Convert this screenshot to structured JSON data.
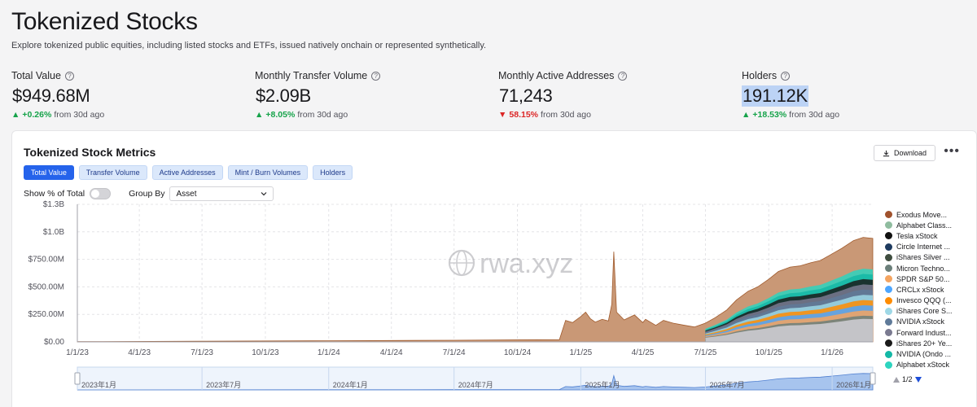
{
  "header": {
    "title": "Tokenized Stocks",
    "subtitle": "Explore tokenized public equities, including listed stocks and ETFs, issued natively onchain or represented synthetically."
  },
  "stats": [
    {
      "label": "Total Value",
      "value": "$949.68M",
      "delta": "+0.26%",
      "direction": "up",
      "suffix": "from 30d ago"
    },
    {
      "label": "Monthly Transfer Volume",
      "value": "$2.09B",
      "delta": "+8.05%",
      "direction": "up",
      "suffix": "from 30d ago"
    },
    {
      "label": "Monthly Active Addresses",
      "value": "71,243",
      "delta": "58.15%",
      "direction": "down",
      "suffix": "from 30d ago"
    },
    {
      "label": "Holders",
      "value": "191.12K",
      "delta": "+18.53%",
      "direction": "up",
      "suffix": "from 30d ago"
    }
  ],
  "card": {
    "title": "Tokenized Stock Metrics",
    "download_label": "Download",
    "more_label": "•••",
    "tabs": [
      "Total Value",
      "Transfer Volume",
      "Active Addresses",
      "Mint / Burn Volumes",
      "Holders"
    ],
    "active_tab": 0,
    "show_pct_label": "Show % of Total",
    "show_pct_on": false,
    "group_by_label": "Group By",
    "group_by_value": "Asset",
    "watermark": "rwa.xyz",
    "legend_page": "1/2"
  },
  "colors": {
    "accent": "#2563eb",
    "up": "#16a34a",
    "down": "#dc2626"
  },
  "chart_data": {
    "type": "area",
    "stacked": true,
    "yticks": [
      "$0.00",
      "$250.00M",
      "$500.00M",
      "$750.00M",
      "$1.0B",
      "$1.3B"
    ],
    "ylim": [
      0,
      1250000000
    ],
    "xticks": [
      "1/1/23",
      "4/1/23",
      "7/1/23",
      "10/1/23",
      "1/1/24",
      "4/1/24",
      "7/1/24",
      "10/1/24",
      "1/1/25",
      "4/1/25",
      "7/1/25",
      "10/1/25",
      "1/1/26"
    ],
    "navigator_ticks": [
      "2023年1月",
      "2023年7月",
      "2024年1月",
      "2024年7月",
      "2025年1月",
      "2025年7月",
      "2026年1月"
    ],
    "x_start": "2023-01-01",
    "x_end": "2026-03-01",
    "grid": true,
    "legend_placement": "right",
    "series": [
      {
        "name": "Exodus Move...",
        "color": "#a0522d"
      },
      {
        "name": "Alphabet Class...",
        "color": "#8fbc9f"
      },
      {
        "name": "Tesla xStock",
        "color": "#111111"
      },
      {
        "name": "Circle Internet ...",
        "color": "#1e3a5f"
      },
      {
        "name": "iShares Silver ...",
        "color": "#3f4d3f"
      },
      {
        "name": "Micron Techno...",
        "color": "#6b7f7a"
      },
      {
        "name": "SPDR S&P 50...",
        "color": "#f4a460"
      },
      {
        "name": "CRCLx xStock",
        "color": "#4da6ff"
      },
      {
        "name": "Invesco QQQ (...",
        "color": "#ff8c00"
      },
      {
        "name": "iShares Core S...",
        "color": "#9ed8e6"
      },
      {
        "name": "NVIDIA xStock",
        "color": "#5f7a99"
      },
      {
        "name": "Forward Indust...",
        "color": "#7a7a90"
      },
      {
        "name": "iShares 20+ Ye...",
        "color": "#1a1a1a"
      },
      {
        "name": "NVIDIA (Ondo ...",
        "color": "#14b8a6"
      },
      {
        "name": "Alphabet xStock",
        "color": "#2dd4bf"
      }
    ],
    "total_series": {
      "name": "Total Value",
      "points": [
        [
          "2023-01-01",
          2000000
        ],
        [
          "2023-07-01",
          6000000
        ],
        [
          "2024-01-01",
          10000000
        ],
        [
          "2024-07-01",
          15000000
        ],
        [
          "2024-12-01",
          20000000
        ],
        [
          "2024-12-10",
          195000000
        ],
        [
          "2024-12-20",
          175000000
        ],
        [
          "2025-01-01",
          230000000
        ],
        [
          "2025-01-08",
          270000000
        ],
        [
          "2025-01-15",
          210000000
        ],
        [
          "2025-01-22",
          180000000
        ],
        [
          "2025-02-01",
          205000000
        ],
        [
          "2025-02-10",
          190000000
        ],
        [
          "2025-02-15",
          340000000
        ],
        [
          "2025-02-18",
          820000000
        ],
        [
          "2025-02-22",
          270000000
        ],
        [
          "2025-03-05",
          200000000
        ],
        [
          "2025-03-20",
          245000000
        ],
        [
          "2025-04-01",
          175000000
        ],
        [
          "2025-04-05",
          205000000
        ],
        [
          "2025-04-20",
          150000000
        ],
        [
          "2025-05-01",
          195000000
        ],
        [
          "2025-05-15",
          170000000
        ],
        [
          "2025-06-01",
          150000000
        ],
        [
          "2025-06-15",
          135000000
        ],
        [
          "2025-07-01",
          170000000
        ],
        [
          "2025-07-15",
          220000000
        ],
        [
          "2025-08-01",
          290000000
        ],
        [
          "2025-08-15",
          380000000
        ],
        [
          "2025-09-01",
          460000000
        ],
        [
          "2025-09-15",
          500000000
        ],
        [
          "2025-10-01",
          570000000
        ],
        [
          "2025-10-15",
          640000000
        ],
        [
          "2025-11-01",
          680000000
        ],
        [
          "2025-11-15",
          690000000
        ],
        [
          "2025-12-01",
          720000000
        ],
        [
          "2025-12-15",
          740000000
        ],
        [
          "2026-01-01",
          800000000
        ],
        [
          "2026-01-15",
          850000000
        ],
        [
          "2026-02-01",
          920000000
        ],
        [
          "2026-02-15",
          950000000
        ],
        [
          "2026-03-01",
          940000000
        ]
      ]
    }
  }
}
